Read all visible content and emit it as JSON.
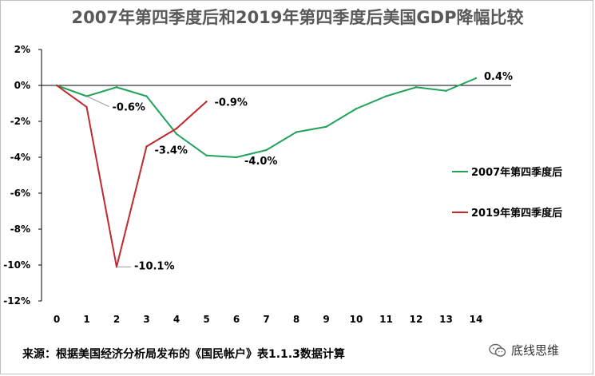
{
  "chart_data": {
    "type": "line",
    "title": "2007年第四季度后和2019年第四季度后美国GDP降幅比较",
    "x": [
      0,
      1,
      2,
      3,
      4,
      5,
      6,
      7,
      8,
      9,
      10,
      11,
      12,
      13,
      14
    ],
    "ylim": [
      -12,
      2
    ],
    "yticks": [
      2,
      0,
      -2,
      -4,
      -6,
      -8,
      -10,
      -12
    ],
    "ytick_labels": [
      "2%",
      "0%",
      "-2%",
      "-4%",
      "-6%",
      "-8%",
      "-10%",
      "-12%"
    ],
    "xtick_labels": [
      "0",
      "1",
      "2",
      "3",
      "4",
      "5",
      "6",
      "7",
      "8",
      "9",
      "10",
      "11",
      "12",
      "13",
      "14"
    ],
    "grid": false,
    "legend_position": "right",
    "series": [
      {
        "name": "2007年第四季度后",
        "color": "#21a35a",
        "x": [
          0,
          1,
          2,
          3,
          4,
          5,
          6,
          7,
          8,
          9,
          10,
          11,
          12,
          13,
          14
        ],
        "values": [
          0,
          -0.6,
          -0.1,
          -0.6,
          -2.7,
          -3.9,
          -4.0,
          -3.6,
          -2.6,
          -2.3,
          -1.3,
          -0.6,
          -0.1,
          -0.3,
          0.4
        ]
      },
      {
        "name": "2019年第四季度后",
        "color": "#c0282d",
        "x": [
          0,
          1,
          2,
          3,
          4,
          5
        ],
        "values": [
          0,
          -1.2,
          -10.1,
          -3.4,
          -2.4,
          -0.9
        ]
      }
    ],
    "annotations": [
      {
        "text": "-0.6%",
        "series": 0,
        "index": 1
      },
      {
        "text": "-4.0%",
        "series": 0,
        "index": 6
      },
      {
        "text": "0.4%",
        "series": 0,
        "index": 14
      },
      {
        "text": "-10.1%",
        "series": 1,
        "index": 2
      },
      {
        "text": "-3.4%",
        "series": 1,
        "index": 3
      },
      {
        "text": "-0.9%",
        "series": 1,
        "index": 5
      }
    ]
  },
  "footer": {
    "source": "来源：根据美国经济分析局发布的《国民帐户》表1.1.3数据计算"
  },
  "watermark": {
    "text": "底线思维",
    "icon": "wechat-icon"
  }
}
